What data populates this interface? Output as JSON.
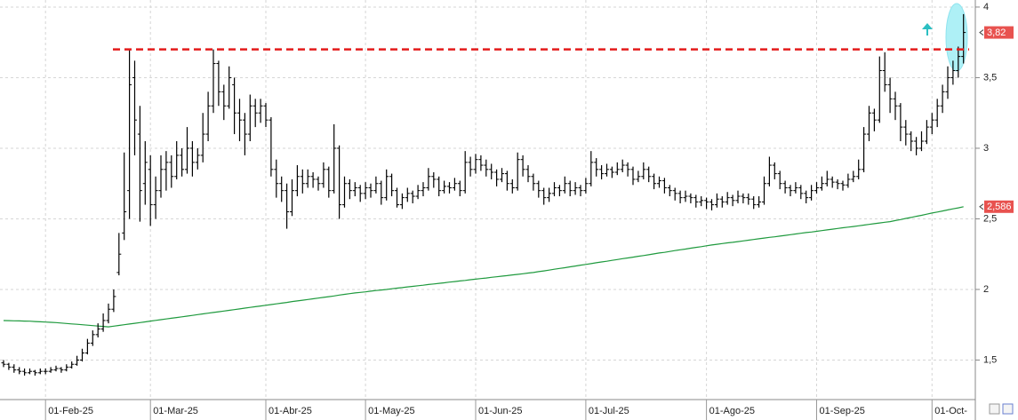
{
  "chart_data": {
    "type": "ohlc",
    "categories": [
      null,
      null,
      null,
      null,
      null,
      null,
      null,
      null,
      "01-Feb-25",
      null,
      null,
      null,
      null,
      null,
      null,
      null,
      null,
      null,
      null,
      null,
      null,
      null,
      null,
      null,
      null,
      null,
      null,
      null,
      "01-Mar-25",
      null,
      null,
      null,
      null,
      null,
      null,
      null,
      null,
      null,
      null,
      null,
      null,
      null,
      null,
      null,
      null,
      null,
      null,
      null,
      null,
      null,
      "01-Abr-25",
      null,
      null,
      null,
      null,
      null,
      null,
      null,
      null,
      null,
      null,
      null,
      null,
      null,
      null,
      null,
      null,
      null,
      null,
      "01-May-25",
      null,
      null,
      null,
      null,
      null,
      null,
      null,
      null,
      null,
      null,
      null,
      null,
      null,
      null,
      null,
      null,
      null,
      null,
      null,
      null,
      "01-Jun-25",
      null,
      null,
      null,
      null,
      null,
      null,
      null,
      null,
      null,
      null,
      null,
      null,
      null,
      null,
      null,
      null,
      null,
      null,
      null,
      null,
      "01-Jul-25",
      null,
      null,
      null,
      null,
      null,
      null,
      null,
      null,
      null,
      null,
      null,
      null,
      null,
      null,
      null,
      null,
      null,
      null,
      null,
      null,
      null,
      null,
      "01-Ago-25",
      null,
      null,
      null,
      null,
      null,
      null,
      null,
      null,
      null,
      null,
      null,
      null,
      null,
      null,
      null,
      null,
      null,
      null,
      null,
      null,
      "01-Sep-25",
      null,
      null,
      null,
      null,
      null,
      null,
      null,
      null,
      null,
      null,
      null,
      null,
      null,
      null,
      null,
      null,
      null,
      null,
      null,
      null,
      null,
      "01-Oct-",
      null,
      null,
      null,
      null,
      null,
      null
    ],
    "ohlc": [
      [
        1.48,
        1.5,
        1.45,
        1.47
      ],
      [
        1.47,
        1.48,
        1.43,
        1.45
      ],
      [
        1.45,
        1.47,
        1.41,
        1.43
      ],
      [
        1.43,
        1.45,
        1.4,
        1.42
      ],
      [
        1.42,
        1.44,
        1.39,
        1.41
      ],
      [
        1.41,
        1.44,
        1.4,
        1.42
      ],
      [
        1.42,
        1.43,
        1.39,
        1.41
      ],
      [
        1.41,
        1.44,
        1.4,
        1.42
      ],
      [
        1.42,
        1.44,
        1.4,
        1.42
      ],
      [
        1.42,
        1.45,
        1.41,
        1.43
      ],
      [
        1.43,
        1.46,
        1.42,
        1.44
      ],
      [
        1.44,
        1.45,
        1.41,
        1.43
      ],
      [
        1.43,
        1.47,
        1.42,
        1.45
      ],
      [
        1.45,
        1.49,
        1.44,
        1.47
      ],
      [
        1.47,
        1.53,
        1.46,
        1.5
      ],
      [
        1.5,
        1.58,
        1.49,
        1.55
      ],
      [
        1.55,
        1.65,
        1.54,
        1.62
      ],
      [
        1.62,
        1.71,
        1.6,
        1.68
      ],
      [
        1.68,
        1.76,
        1.66,
        1.72
      ],
      [
        1.72,
        1.83,
        1.7,
        1.78
      ],
      [
        1.78,
        1.9,
        1.76,
        1.86
      ],
      [
        1.86,
        2.0,
        1.84,
        1.95
      ],
      [
        2.12,
        2.4,
        2.1,
        2.25
      ],
      [
        2.4,
        2.97,
        2.35,
        2.55
      ],
      [
        2.7,
        3.7,
        2.5,
        3.45
      ],
      [
        3.5,
        3.62,
        2.95,
        3.2
      ],
      [
        3.1,
        3.3,
        2.48,
        2.7
      ],
      [
        2.75,
        3.05,
        2.6,
        2.9
      ],
      [
        2.85,
        2.95,
        2.45,
        2.6
      ],
      [
        2.6,
        2.8,
        2.5,
        2.7
      ],
      [
        2.7,
        2.95,
        2.65,
        2.85
      ],
      [
        2.85,
        2.98,
        2.7,
        2.9
      ],
      [
        2.9,
        2.95,
        2.72,
        2.8
      ],
      [
        2.8,
        3.05,
        2.78,
        2.95
      ],
      [
        2.95,
        3.0,
        2.8,
        2.85
      ],
      [
        2.85,
        3.15,
        2.82,
        3.0
      ],
      [
        3.0,
        3.05,
        2.8,
        2.9
      ],
      [
        2.9,
        3.0,
        2.85,
        2.95
      ],
      [
        2.95,
        3.25,
        2.9,
        3.1
      ],
      [
        3.1,
        3.4,
        3.05,
        3.3
      ],
      [
        3.3,
        3.7,
        3.25,
        3.6
      ],
      [
        3.6,
        3.62,
        3.3,
        3.4
      ],
      [
        3.4,
        3.45,
        3.2,
        3.3
      ],
      [
        3.3,
        3.58,
        3.28,
        3.5
      ],
      [
        3.45,
        3.5,
        3.1,
        3.25
      ],
      [
        3.25,
        3.35,
        3.05,
        3.2
      ],
      [
        3.2,
        3.25,
        2.95,
        3.1
      ],
      [
        3.1,
        3.38,
        3.05,
        3.3
      ],
      [
        3.3,
        3.35,
        3.15,
        3.25
      ],
      [
        3.25,
        3.35,
        3.18,
        3.3
      ],
      [
        3.3,
        3.32,
        3.15,
        3.2
      ],
      [
        3.2,
        3.22,
        2.8,
        2.85
      ],
      [
        2.85,
        2.92,
        2.65,
        2.75
      ],
      [
        2.75,
        2.8,
        2.62,
        2.7
      ],
      [
        2.7,
        2.75,
        2.43,
        2.55
      ],
      [
        2.55,
        2.78,
        2.52,
        2.7
      ],
      [
        2.7,
        2.88,
        2.66,
        2.8
      ],
      [
        2.8,
        2.85,
        2.68,
        2.75
      ],
      [
        2.75,
        2.85,
        2.72,
        2.8
      ],
      [
        2.8,
        2.83,
        2.72,
        2.78
      ],
      [
        2.78,
        2.8,
        2.7,
        2.75
      ],
      [
        2.75,
        2.9,
        2.72,
        2.85
      ],
      [
        2.85,
        2.87,
        2.65,
        2.7
      ],
      [
        2.7,
        3.17,
        2.68,
        3.0
      ],
      [
        3.0,
        3.02,
        2.5,
        2.6
      ],
      [
        2.6,
        2.8,
        2.58,
        2.75
      ],
      [
        2.75,
        2.78,
        2.64,
        2.7
      ],
      [
        2.7,
        2.76,
        2.66,
        2.72
      ],
      [
        2.72,
        2.74,
        2.62,
        2.68
      ],
      [
        2.68,
        2.76,
        2.64,
        2.72
      ],
      [
        2.72,
        2.75,
        2.65,
        2.7
      ],
      [
        2.7,
        2.8,
        2.68,
        2.75
      ],
      [
        2.75,
        2.77,
        2.6,
        2.65
      ],
      [
        2.65,
        2.85,
        2.63,
        2.8
      ],
      [
        2.8,
        2.82,
        2.66,
        2.7
      ],
      [
        2.7,
        2.72,
        2.58,
        2.6
      ],
      [
        2.6,
        2.68,
        2.57,
        2.65
      ],
      [
        2.65,
        2.72,
        2.62,
        2.68
      ],
      [
        2.68,
        2.7,
        2.61,
        2.66
      ],
      [
        2.66,
        2.74,
        2.64,
        2.7
      ],
      [
        2.7,
        2.76,
        2.66,
        2.72
      ],
      [
        2.72,
        2.86,
        2.7,
        2.8
      ],
      [
        2.8,
        2.83,
        2.72,
        2.78
      ],
      [
        2.78,
        2.8,
        2.66,
        2.7
      ],
      [
        2.7,
        2.77,
        2.68,
        2.73
      ],
      [
        2.73,
        2.76,
        2.68,
        2.72
      ],
      [
        2.72,
        2.79,
        2.7,
        2.75
      ],
      [
        2.75,
        2.77,
        2.66,
        2.7
      ],
      [
        2.7,
        2.98,
        2.68,
        2.9
      ],
      [
        2.9,
        2.94,
        2.8,
        2.85
      ],
      [
        2.85,
        2.96,
        2.82,
        2.92
      ],
      [
        2.92,
        2.95,
        2.84,
        2.88
      ],
      [
        2.88,
        2.92,
        2.8,
        2.85
      ],
      [
        2.85,
        2.89,
        2.78,
        2.83
      ],
      [
        2.83,
        2.85,
        2.73,
        2.78
      ],
      [
        2.78,
        2.86,
        2.76,
        2.82
      ],
      [
        2.82,
        2.84,
        2.7,
        2.75
      ],
      [
        2.75,
        2.78,
        2.68,
        2.72
      ],
      [
        2.72,
        2.97,
        2.7,
        2.92
      ],
      [
        2.92,
        2.95,
        2.8,
        2.85
      ],
      [
        2.85,
        2.88,
        2.76,
        2.8
      ],
      [
        2.8,
        2.82,
        2.7,
        2.75
      ],
      [
        2.75,
        2.77,
        2.65,
        2.7
      ],
      [
        2.7,
        2.72,
        2.6,
        2.65
      ],
      [
        2.65,
        2.72,
        2.62,
        2.68
      ],
      [
        2.68,
        2.76,
        2.66,
        2.72
      ],
      [
        2.72,
        2.74,
        2.66,
        2.7
      ],
      [
        2.7,
        2.8,
        2.68,
        2.75
      ],
      [
        2.75,
        2.77,
        2.66,
        2.7
      ],
      [
        2.7,
        2.76,
        2.67,
        2.72
      ],
      [
        2.72,
        2.74,
        2.66,
        2.7
      ],
      [
        2.7,
        2.79,
        2.68,
        2.75
      ],
      [
        2.75,
        2.98,
        2.73,
        2.9
      ],
      [
        2.9,
        2.93,
        2.8,
        2.85
      ],
      [
        2.85,
        2.88,
        2.78,
        2.82
      ],
      [
        2.82,
        2.89,
        2.8,
        2.85
      ],
      [
        2.85,
        2.87,
        2.79,
        2.83
      ],
      [
        2.83,
        2.9,
        2.81,
        2.85
      ],
      [
        2.85,
        2.92,
        2.83,
        2.88
      ],
      [
        2.88,
        2.9,
        2.8,
        2.85
      ],
      [
        2.85,
        2.87,
        2.74,
        2.78
      ],
      [
        2.78,
        2.84,
        2.76,
        2.8
      ],
      [
        2.8,
        2.9,
        2.78,
        2.85
      ],
      [
        2.85,
        2.87,
        2.76,
        2.8
      ],
      [
        2.8,
        2.82,
        2.71,
        2.75
      ],
      [
        2.75,
        2.8,
        2.72,
        2.77
      ],
      [
        2.77,
        2.79,
        2.68,
        2.72
      ],
      [
        2.72,
        2.74,
        2.66,
        2.7
      ],
      [
        2.7,
        2.72,
        2.63,
        2.68
      ],
      [
        2.68,
        2.7,
        2.61,
        2.65
      ],
      [
        2.65,
        2.7,
        2.62,
        2.66
      ],
      [
        2.66,
        2.68,
        2.61,
        2.65
      ],
      [
        2.65,
        2.67,
        2.58,
        2.62
      ],
      [
        2.62,
        2.66,
        2.59,
        2.63
      ],
      [
        2.63,
        2.65,
        2.57,
        2.62
      ],
      [
        2.62,
        2.64,
        2.56,
        2.6
      ],
      [
        2.6,
        2.68,
        2.58,
        2.64
      ],
      [
        2.64,
        2.66,
        2.58,
        2.62
      ],
      [
        2.62,
        2.69,
        2.6,
        2.65
      ],
      [
        2.65,
        2.67,
        2.59,
        2.63
      ],
      [
        2.63,
        2.7,
        2.61,
        2.66
      ],
      [
        2.66,
        2.68,
        2.61,
        2.65
      ],
      [
        2.65,
        2.68,
        2.6,
        2.64
      ],
      [
        2.64,
        2.66,
        2.57,
        2.6
      ],
      [
        2.6,
        2.66,
        2.58,
        2.62
      ],
      [
        2.62,
        2.8,
        2.6,
        2.75
      ],
      [
        2.75,
        2.94,
        2.73,
        2.88
      ],
      [
        2.88,
        2.9,
        2.78,
        2.82
      ],
      [
        2.82,
        2.84,
        2.71,
        2.75
      ],
      [
        2.75,
        2.77,
        2.68,
        2.72
      ],
      [
        2.72,
        2.74,
        2.66,
        2.7
      ],
      [
        2.7,
        2.76,
        2.68,
        2.72
      ],
      [
        2.72,
        2.74,
        2.64,
        2.68
      ],
      [
        2.68,
        2.7,
        2.61,
        2.65
      ],
      [
        2.65,
        2.74,
        2.63,
        2.7
      ],
      [
        2.7,
        2.76,
        2.68,
        2.72
      ],
      [
        2.72,
        2.8,
        2.7,
        2.75
      ],
      [
        2.75,
        2.84,
        2.73,
        2.78
      ],
      [
        2.78,
        2.8,
        2.72,
        2.76
      ],
      [
        2.76,
        2.78,
        2.71,
        2.75
      ],
      [
        2.75,
        2.77,
        2.7,
        2.74
      ],
      [
        2.74,
        2.82,
        2.72,
        2.78
      ],
      [
        2.78,
        2.84,
        2.76,
        2.8
      ],
      [
        2.8,
        2.92,
        2.78,
        2.85
      ],
      [
        2.85,
        3.15,
        2.83,
        3.1
      ],
      [
        3.1,
        3.3,
        3.05,
        3.25
      ],
      [
        3.25,
        3.28,
        3.12,
        3.2
      ],
      [
        3.2,
        3.65,
        3.18,
        3.55
      ],
      [
        3.55,
        3.68,
        3.4,
        3.45
      ],
      [
        3.45,
        3.5,
        3.25,
        3.35
      ],
      [
        3.35,
        3.4,
        3.2,
        3.3
      ],
      [
        3.3,
        3.32,
        3.05,
        3.15
      ],
      [
        3.15,
        3.2,
        3.02,
        3.1
      ],
      [
        3.1,
        3.12,
        2.98,
        3.05
      ],
      [
        3.05,
        3.08,
        2.95,
        3.0
      ],
      [
        3.0,
        3.12,
        2.98,
        3.05
      ],
      [
        3.05,
        3.2,
        3.03,
        3.15
      ],
      [
        3.15,
        3.25,
        3.1,
        3.2
      ],
      [
        3.2,
        3.35,
        3.15,
        3.3
      ],
      [
        3.3,
        3.45,
        3.25,
        3.4
      ],
      [
        3.4,
        3.58,
        3.35,
        3.5
      ],
      [
        3.5,
        3.62,
        3.45,
        3.55
      ],
      [
        3.55,
        3.72,
        3.5,
        3.65
      ],
      [
        3.65,
        3.95,
        3.6,
        3.82
      ]
    ],
    "color": "#000000",
    "overlays": [
      {
        "type": "line",
        "color": "#1f9a3e",
        "values": [
          1.78,
          1.779,
          1.778,
          1.777,
          1.776,
          1.775,
          1.773,
          1.771,
          1.769,
          1.767,
          1.765,
          1.762,
          1.759,
          1.756,
          1.753,
          1.75,
          1.747,
          1.744,
          1.741,
          1.738,
          1.735,
          1.74,
          1.745,
          1.75,
          1.755,
          1.76,
          1.765,
          1.77,
          1.776,
          1.781,
          1.786,
          1.791,
          1.796,
          1.801,
          1.806,
          1.811,
          1.816,
          1.822,
          1.827,
          1.832,
          1.837,
          1.842,
          1.847,
          1.852,
          1.857,
          1.862,
          1.868,
          1.873,
          1.878,
          1.883,
          1.888,
          1.893,
          1.898,
          1.903,
          1.908,
          1.914,
          1.919,
          1.924,
          1.929,
          1.934,
          1.939,
          1.944,
          1.949,
          1.954,
          1.96,
          1.965,
          1.97,
          1.975,
          1.979,
          1.983,
          1.988,
          1.992,
          1.996,
          2.0,
          2.005,
          2.009,
          2.013,
          2.018,
          2.022,
          2.026,
          2.03,
          2.035,
          2.039,
          2.043,
          2.047,
          2.052,
          2.056,
          2.06,
          2.064,
          2.069,
          2.073,
          2.077,
          2.081,
          2.086,
          2.09,
          2.094,
          2.098,
          2.103,
          2.107,
          2.111,
          2.116,
          2.12,
          2.126,
          2.131,
          2.137,
          2.143,
          2.149,
          2.154,
          2.16,
          2.166,
          2.172,
          2.177,
          2.183,
          2.189,
          2.195,
          2.2,
          2.206,
          2.212,
          2.218,
          2.223,
          2.229,
          2.235,
          2.24,
          2.246,
          2.252,
          2.258,
          2.263,
          2.269,
          2.275,
          2.281,
          2.286,
          2.292,
          2.298,
          2.303,
          2.309,
          2.315,
          2.32,
          2.325,
          2.33,
          2.334,
          2.339,
          2.344,
          2.349,
          2.354,
          2.359,
          2.364,
          2.369,
          2.373,
          2.378,
          2.383,
          2.388,
          2.393,
          2.398,
          2.403,
          2.407,
          2.412,
          2.417,
          2.422,
          2.427,
          2.432,
          2.437,
          2.441,
          2.446,
          2.451,
          2.456,
          2.461,
          2.466,
          2.471,
          2.476,
          2.48,
          2.488,
          2.495,
          2.503,
          2.51,
          2.518,
          2.525,
          2.533,
          2.541,
          2.548,
          2.556,
          2.563,
          2.571,
          2.578,
          2.586
        ]
      }
    ],
    "resistance": {
      "value": 3.7,
      "color": "#e41b1b"
    },
    "price_tags": [
      {
        "value": 3.82,
        "label": "3,82",
        "color": "#e8524f"
      },
      {
        "value": 2.586,
        "label": "2,586",
        "color": "#e8524f"
      }
    ],
    "ylim": [
      1.22,
      4.05
    ],
    "yticks": [
      {
        "value": 1.5,
        "label": "1,5"
      },
      2,
      {
        "value": 2.5,
        "label": "2,5"
      },
      3,
      {
        "value": 3.5,
        "label": "3,5"
      },
      4
    ],
    "grid": true
  }
}
